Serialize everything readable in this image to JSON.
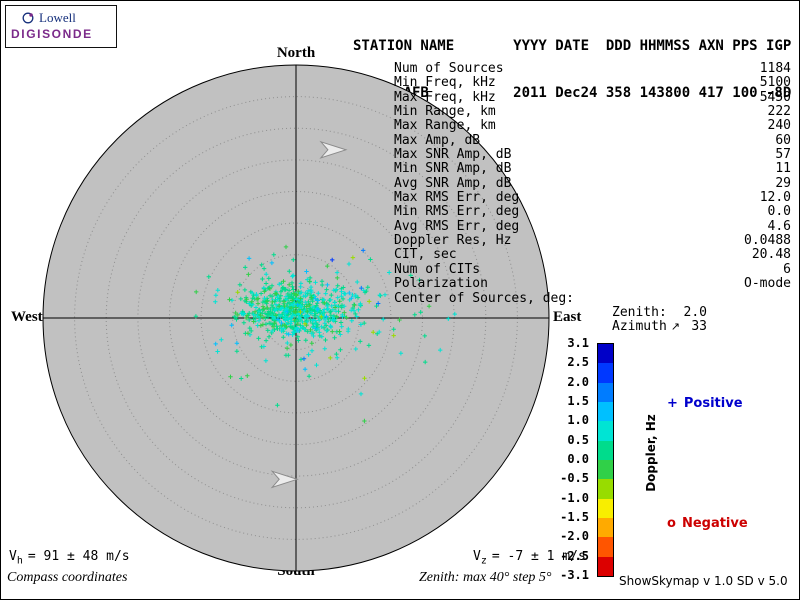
{
  "logo": {
    "top": "Lowell",
    "bottom": "DIGISONDE"
  },
  "header": {
    "line1": "STATION NAME       YYYY DATE  DDD HHMMSS AXN PPS IGP",
    "line2": "Eglin AFB          2011 Dec24 358 143800 417 100 -8D",
    "fields": {
      "station_name": "Eglin AFB",
      "yyyy": "2011",
      "date": "Dec24",
      "ddd": "358",
      "hhmmss": "143800",
      "axn": "417",
      "pps": "100",
      "igp": "-8D"
    }
  },
  "stats": {
    "rows": [
      {
        "label": "Num of Sources",
        "value": "1184"
      },
      {
        "label": "Min Freq, kHz",
        "value": "5100"
      },
      {
        "label": "Max Freq, kHz",
        "value": "5450"
      },
      {
        "label": "Min Range, km",
        "value": "222"
      },
      {
        "label": "Max Range, km",
        "value": "240"
      },
      {
        "label": "Max Amp, dB",
        "value": "60"
      },
      {
        "label": "Max SNR Amp, dB",
        "value": "57"
      },
      {
        "label": "Min SNR Amp, dB",
        "value": "11"
      },
      {
        "label": "Avg SNR Amp, dB",
        "value": "29"
      },
      {
        "label": "Max RMS Err, deg",
        "value": "12.0"
      },
      {
        "label": "Min RMS Err, deg",
        "value": "0.0"
      },
      {
        "label": "Avg RMS Err, deg",
        "value": "4.6"
      },
      {
        "label": "Doppler Res, Hz",
        "value": "0.0488"
      },
      {
        "label": "CIT, sec",
        "value": "20.48"
      },
      {
        "label": "Num of CITs",
        "value": "6"
      },
      {
        "label": "Polarization",
        "value": "O-mode"
      },
      {
        "label": "Center of Sources, deg:",
        "value": ""
      },
      {
        "label": "Zenith:",
        "value": "2.0",
        "inset": true
      },
      {
        "label": "Azimuth",
        "icon": "↗",
        "value": "33",
        "inset": true
      }
    ]
  },
  "compass": {
    "north": "North",
    "east": "East",
    "south": "South",
    "west": "West"
  },
  "legend": {
    "positive": {
      "symbol": "+",
      "label": "Positive",
      "color": "#0000cc"
    },
    "negative": {
      "symbol": "o",
      "label": "Negative",
      "color": "#cc0000"
    }
  },
  "footer": {
    "vh": {
      "main": "V",
      "sub": "h",
      "text": "= 91 ± 48 m/s"
    },
    "vz": {
      "main": "V",
      "sub": "z",
      "text": "= -7 ± 1 m/s"
    },
    "coords_note": "Compass coordinates",
    "zenith_note": "Zenith: max 40°  step 5°",
    "version": "ShowSkymap v 1.0  SD v 5.0"
  },
  "chart_data": {
    "type": "scatter",
    "projection": "polar_skymap",
    "compass_labels": [
      "North",
      "East",
      "South",
      "West"
    ],
    "zenith_max_deg": 40,
    "zenith_step_deg": 5,
    "rings_deg": [
      5,
      10,
      15,
      20,
      25,
      30,
      35,
      40
    ],
    "num_sources": 1184,
    "center_of_sources": {
      "zenith_deg": 2.0,
      "azimuth_deg": 33
    },
    "marker": "plus",
    "disc_color": "#c1c1c1",
    "vh_ms": "91 ± 48",
    "vz_ms": "-7 ± 1",
    "point_clusters": [
      {
        "count": 380,
        "center_east_deg": -1.6,
        "center_north_deg": 1.2,
        "sigma_east_deg": 3.6,
        "sigma_north_deg": 2.0,
        "doppler_mean_hz": 0.3,
        "doppler_sigma_hz": 0.25
      },
      {
        "count": 220,
        "center_east_deg": 3.0,
        "center_north_deg": 0.9,
        "sigma_east_deg": 4.6,
        "sigma_north_deg": 2.4,
        "doppler_mean_hz": 0.55,
        "doppler_sigma_hz": 0.3
      },
      {
        "count": 130,
        "center_east_deg": 0.6,
        "center_north_deg": 0.2,
        "sigma_east_deg": 9.0,
        "sigma_north_deg": 5.0,
        "doppler_mean_hz": 0.3,
        "doppler_sigma_hz": 0.55
      }
    ],
    "beam_markers": [
      {
        "east_deg": 6.0,
        "north_deg": 26.6
      },
      {
        "east_deg": -1.7,
        "north_deg": -25.5
      }
    ],
    "colorbar": {
      "title": "Doppler, Hz",
      "ticks": [
        3.1,
        2.5,
        2.0,
        1.5,
        1.0,
        0.5,
        0.0,
        -0.5,
        -1.0,
        -1.5,
        -2.0,
        -2.5,
        -3.1
      ],
      "segment_colors": [
        "#0000c8",
        "#0038ff",
        "#007cff",
        "#00c0ff",
        "#00e4d4",
        "#00dc8c",
        "#30d048",
        "#98dc00",
        "#f8ee00",
        "#ffaa00",
        "#ff5500",
        "#dc0000"
      ]
    }
  }
}
